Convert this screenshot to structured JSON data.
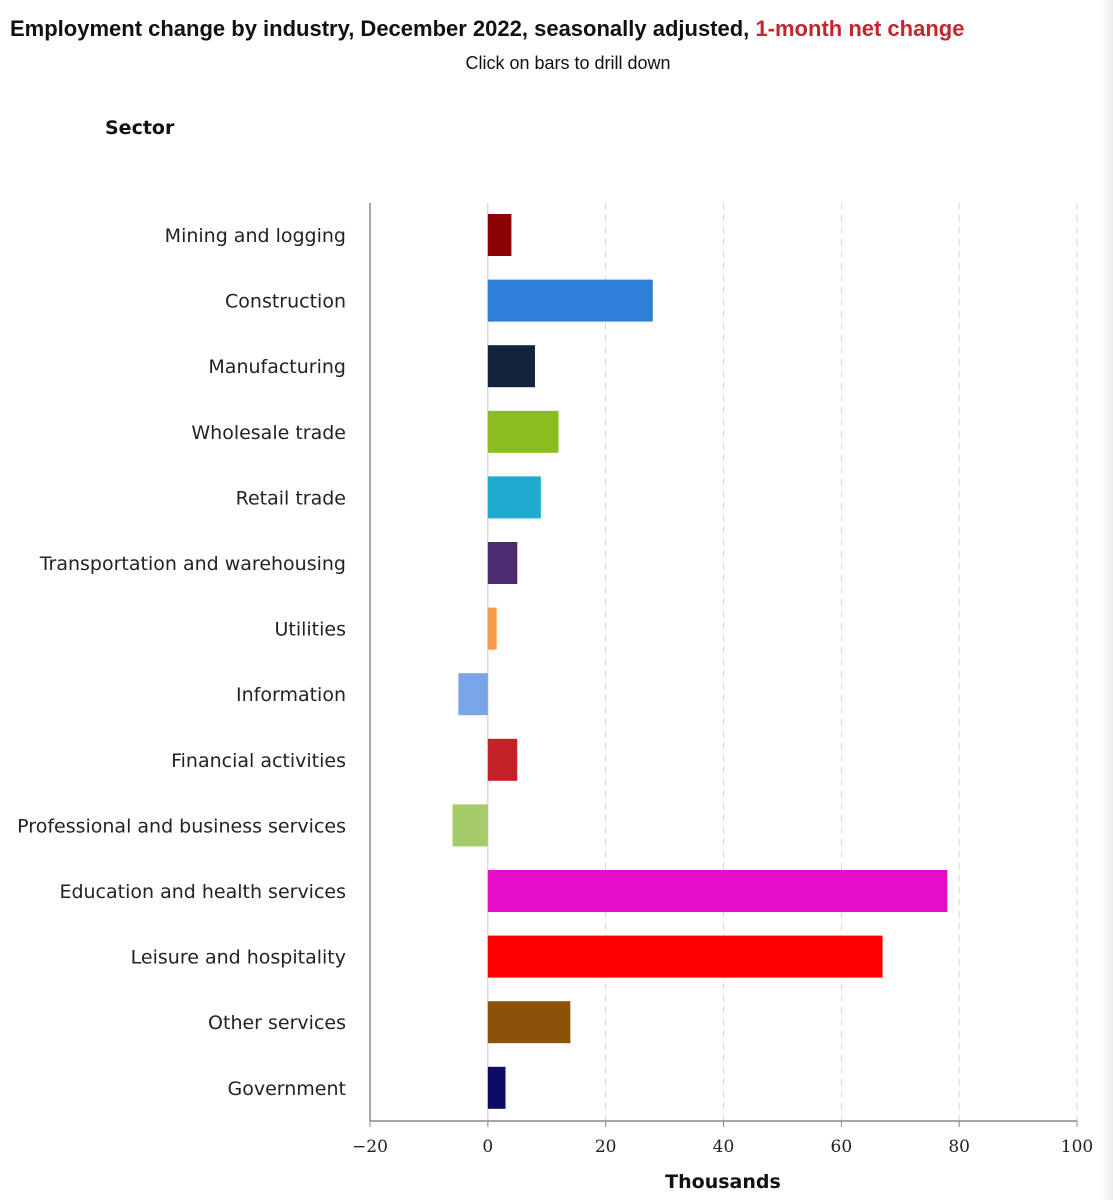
{
  "header": {
    "title_main": "Employment change by industry, December 2022, seasonally adjusted,",
    "title_highlight": "1-month net change",
    "subtitle": "Click on bars to drill down"
  },
  "chart_data": {
    "type": "bar",
    "orientation": "horizontal",
    "title": "Employment change by industry, December 2022, seasonally adjusted, 1-month net change",
    "subtitle": "Click on bars to drill down",
    "ylabel": "Sector",
    "xlabel": "Thousands",
    "xlim": [
      -20,
      100
    ],
    "xticks": [
      -20,
      0,
      20,
      40,
      60,
      80,
      100
    ],
    "xtick_labels": [
      "−20",
      "0",
      "20",
      "40",
      "60",
      "80",
      "100"
    ],
    "grid": "vertical dashed",
    "categories": [
      "Mining and logging",
      "Construction",
      "Manufacturing",
      "Wholesale trade",
      "Retail trade",
      "Transportation and warehousing",
      "Utilities",
      "Information",
      "Financial activities",
      "Professional and business services",
      "Education and health services",
      "Leisure and hospitality",
      "Other services",
      "Government"
    ],
    "values": [
      4,
      28,
      8,
      12,
      9,
      5,
      1.5,
      -5,
      5,
      -6,
      78,
      67,
      14,
      3
    ],
    "colors": [
      "#8b0000",
      "#2e7fd9",
      "#13233d",
      "#8bbd20",
      "#1fabcf",
      "#4b2a70",
      "#f59a48",
      "#79a4e6",
      "#c42228",
      "#a6cc6a",
      "#e60dc8",
      "#ff0000",
      "#8b520a",
      "#0c0c64"
    ]
  }
}
